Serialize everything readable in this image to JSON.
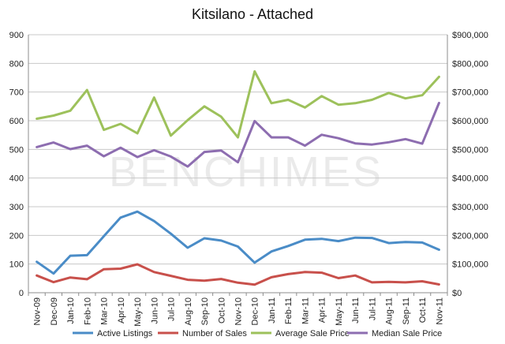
{
  "chart_data": {
    "type": "line",
    "title": "Kitsilano - Attached",
    "watermark": "BENCHIMES",
    "categories": [
      "Nov-09",
      "Dec-09",
      "Jan-10",
      "Feb-10",
      "Mar-10",
      "Apr-10",
      "May-10",
      "Jun-10",
      "Jul-10",
      "Aug-10",
      "Sep-10",
      "Oct-10",
      "Nov-10",
      "Dec-10",
      "Jan-11",
      "Feb-11",
      "Mar-11",
      "Apr-11",
      "May-11",
      "Jun-11",
      "Jul-11",
      "Aug-11",
      "Sep-11",
      "Oct-11",
      "Nov-11"
    ],
    "left_axis": {
      "ylim": [
        0,
        900
      ],
      "ticks": [
        0,
        100,
        200,
        300,
        400,
        500,
        600,
        700,
        800,
        900
      ],
      "tick_labels": [
        "0",
        "100",
        "200",
        "300",
        "400",
        "500",
        "600",
        "700",
        "800",
        "900"
      ]
    },
    "right_axis": {
      "ylim": [
        0,
        900000
      ],
      "ticks": [
        0,
        100000,
        200000,
        300000,
        400000,
        500000,
        600000,
        700000,
        800000,
        900000
      ],
      "tick_labels": [
        "$0",
        "$100,000",
        "$200,000",
        "$300,000",
        "$400,000",
        "$500,000",
        "$600,000",
        "$700,000",
        "$800,000",
        "$900,000"
      ]
    },
    "grid": true,
    "legend_position": "bottom",
    "series": [
      {
        "name": "Active Listings",
        "axis": "left",
        "color": "#4A8CC7",
        "values": [
          108,
          67,
          129,
          131,
          197,
          262,
          283,
          250,
          206,
          157,
          190,
          182,
          161,
          105,
          144,
          163,
          185,
          188,
          180,
          192,
          191,
          173,
          177,
          175,
          150
        ]
      },
      {
        "name": "Number of Sales",
        "axis": "left",
        "color": "#C8504B",
        "values": [
          60,
          37,
          53,
          47,
          82,
          84,
          99,
          72,
          59,
          45,
          42,
          48,
          35,
          28,
          54,
          65,
          72,
          70,
          51,
          60,
          36,
          38,
          36,
          40,
          29
        ]
      },
      {
        "name": "Average Sale Price",
        "axis": "right",
        "color": "#9DC15B",
        "values": [
          607000,
          618000,
          635000,
          707000,
          568000,
          589000,
          556000,
          681000,
          548000,
          602000,
          650000,
          614000,
          542000,
          772000,
          661000,
          673000,
          646000,
          686000,
          656000,
          661000,
          673000,
          697000,
          678000,
          689000,
          753000
        ]
      },
      {
        "name": "Median Sale Price",
        "axis": "right",
        "color": "#8D6DB0",
        "values": [
          508000,
          524000,
          501000,
          513000,
          476000,
          506000,
          473000,
          497000,
          475000,
          440000,
          491000,
          496000,
          455000,
          599000,
          542000,
          542000,
          513000,
          551000,
          539000,
          521000,
          517000,
          525000,
          536000,
          520000,
          662000
        ]
      }
    ]
  }
}
